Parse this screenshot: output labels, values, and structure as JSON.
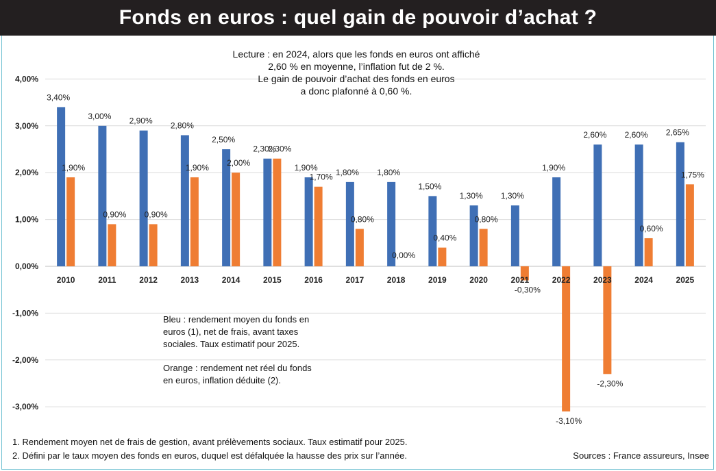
{
  "title": "Fonds en euros : quel gain de pouvoir d’achat ?",
  "reading_note": [
    "Lecture : en 2024, alors que les fonds en euros ont affiché",
    "2,60 % en moyenne, l’inflation fut de 2 %.",
    "Le gain de pouvoir d’achat des fonds en euros",
    "a donc plafonné à 0,60 %."
  ],
  "legend_note": {
    "blue": "Bleu : rendement moyen du fonds en euros (1), net de frais, avant taxes sociales. Taux estimatif pour 2025.",
    "orange": "Orange : rendement net réel du fonds en euros, inflation déduite (2)."
  },
  "footnotes": [
    "1. Rendement moyen net de frais de gestion, avant prélèvements sociaux. Taux estimatif pour 2025.",
    "2. Défini par le taux moyen des fonds en euros, duquel est défalquée la hausse des prix sur l’année."
  ],
  "sources": "Sources : France assureurs, Insee",
  "colors": {
    "blue": "#3f6fb5",
    "orange": "#ef7d33",
    "grid": "#d9d9d9",
    "title_bg": "#231f20"
  },
  "chart_data": {
    "type": "bar",
    "categories": [
      "2010",
      "2011",
      "2012",
      "2013",
      "2014",
      "2015",
      "2016",
      "2017",
      "2018",
      "2019",
      "2020",
      "2021",
      "2022",
      "2023",
      "2024",
      "2025"
    ],
    "series": [
      {
        "values": [
          3.4,
          3.0,
          2.9,
          2.8,
          2.5,
          2.3,
          1.9,
          1.8,
          1.8,
          1.5,
          1.3,
          1.3,
          1.9,
          2.6,
          2.6,
          2.65
        ],
        "labels": [
          "3,40%",
          "3,00%",
          "2,90%",
          "2,80%",
          "2,50%",
          "2,30%",
          "1,90%",
          "1,80%",
          "1,80%",
          "1,50%",
          "1,30%",
          "1,30%",
          "1,90%",
          "2,60%",
          "2,60%",
          "2,65%"
        ],
        "color": "#3f6fb5"
      },
      {
        "values": [
          1.9,
          0.9,
          0.9,
          1.9,
          2.0,
          2.3,
          1.7,
          0.8,
          0.0,
          0.4,
          0.8,
          -0.3,
          -3.1,
          -2.3,
          0.6,
          1.75
        ],
        "labels": [
          "1,90%",
          "0,90%",
          "0,90%",
          "1,90%",
          "2,00%",
          "2,30%",
          "1,70%",
          "0,80%",
          "0,00%",
          "0,40%",
          "0,80%",
          "-0,30%",
          "-3,10%",
          "-2,30%",
          "0,60%",
          "1,75%"
        ],
        "color": "#ef7d33"
      }
    ],
    "yticks": [
      4,
      3,
      2,
      1,
      0,
      -1,
      -2,
      -3
    ],
    "ytick_labels": [
      "4,00%",
      "3,00%",
      "2,00%",
      "1,00%",
      "0,00%",
      "-1,00%",
      "-2,00%",
      "-3,00%"
    ],
    "ylim": [
      -3.2,
      4.2
    ],
    "grid": true
  }
}
